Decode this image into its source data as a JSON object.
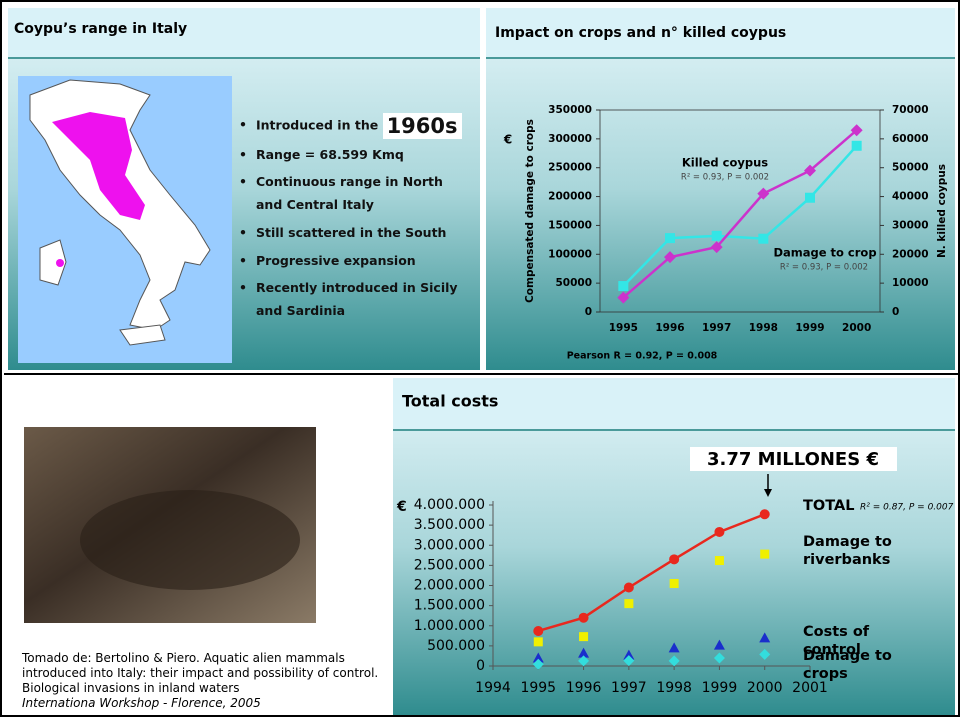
{
  "map_panel": {
    "title": "Coypu’s range in Italy",
    "bullets": [
      "Introduced in the",
      "Range = 68.599 Kmq",
      "Continuous range in North and Central Italy",
      "Still scattered in the South",
      "Progressive expansion",
      "Recently introduced in Sicily and Sardinia"
    ],
    "highlight": "1960s"
  },
  "chart_data": [
    {
      "type": "line",
      "title": "Impact on crops and n° killed coypus",
      "categories": [
        "1995",
        "1996",
        "1997",
        "1998",
        "1999",
        "2000"
      ],
      "series": [
        {
          "name": "Damage to crop",
          "color": "#33e6e6",
          "marker": "square",
          "values": [
            45000,
            128000,
            132000,
            127000,
            198000,
            288000
          ]
        },
        {
          "name": "Killed coypus",
          "color": "#cc33cc",
          "marker": "diamond",
          "axis": "y2",
          "values": [
            5000,
            19000,
            22500,
            41000,
            49000,
            63000
          ]
        }
      ],
      "y_label": "Compensated damage to crops",
      "y_unit": "€",
      "y2_label": "N. killed coypus",
      "ylim": [
        0,
        350000
      ],
      "yticks": [
        0,
        50000,
        100000,
        150000,
        200000,
        250000,
        300000,
        350000
      ],
      "y2lim": [
        0,
        70000
      ],
      "y2ticks": [
        0,
        10000,
        20000,
        30000,
        40000,
        50000,
        60000,
        70000
      ],
      "annotations": [
        "R² = 0.93, P = 0.002",
        "R² = 0.93, P = 0.002",
        "Pearson R = 0.92, P = 0.008"
      ]
    },
    {
      "type": "line",
      "title": "Total costs",
      "x": [
        1995,
        1996,
        1997,
        1998,
        1999,
        2000
      ],
      "series": [
        {
          "name": "TOTAL",
          "color": "#e8281e",
          "marker": "circle",
          "style": "line",
          "values": [
            870000,
            1200000,
            1950000,
            2650000,
            3330000,
            3770000
          ]
        },
        {
          "name": "Damage to riverbanks",
          "color": "#f0f000",
          "marker": "square",
          "style": "markers",
          "values": [
            600000,
            730000,
            1550000,
            2050000,
            2620000,
            2780000
          ]
        },
        {
          "name": "Costs of control",
          "color": "#1a2ecc",
          "marker": "triangle",
          "style": "markers",
          "values": [
            200000,
            320000,
            270000,
            450000,
            520000,
            700000
          ]
        },
        {
          "name": "Damage to crops",
          "color": "#33dddd",
          "marker": "diamond",
          "style": "markers",
          "values": [
            45000,
            128000,
            132000,
            127000,
            198000,
            288000
          ]
        }
      ],
      "y_unit": "€",
      "xlim": [
        1994,
        2001
      ],
      "xticks": [
        1994,
        1995,
        1996,
        1997,
        1998,
        1999,
        2000,
        2001
      ],
      "ylim": [
        0,
        4000000
      ],
      "yticks": [
        0,
        {
          "value": 500000,
          "label": "500.000"
        },
        {
          "value": 1000000,
          "label": "1.000.000"
        },
        {
          "value": 1500000,
          "label": "1.500.000"
        },
        {
          "value": 2000000,
          "label": "2.000.000"
        },
        {
          "value": 2500000,
          "label": "2.500.000"
        },
        {
          "value": 3000000,
          "label": "3.000.000"
        },
        {
          "value": 3500000,
          "label": "3.500.000"
        },
        {
          "value": 4000000,
          "label": "4.000.000"
        }
      ],
      "annotations": [
        "3.77 MILLONES €",
        "R² = 0.87, P = 0.007"
      ]
    }
  ],
  "citation": [
    "Tomado de: Bertolino & Piero. Aquatic alien mammals",
    "introduced into Italy: their impact and possibility of control.",
    "Biological invasions in inland waters",
    "Internationa Workshop - Florence, 2005"
  ]
}
